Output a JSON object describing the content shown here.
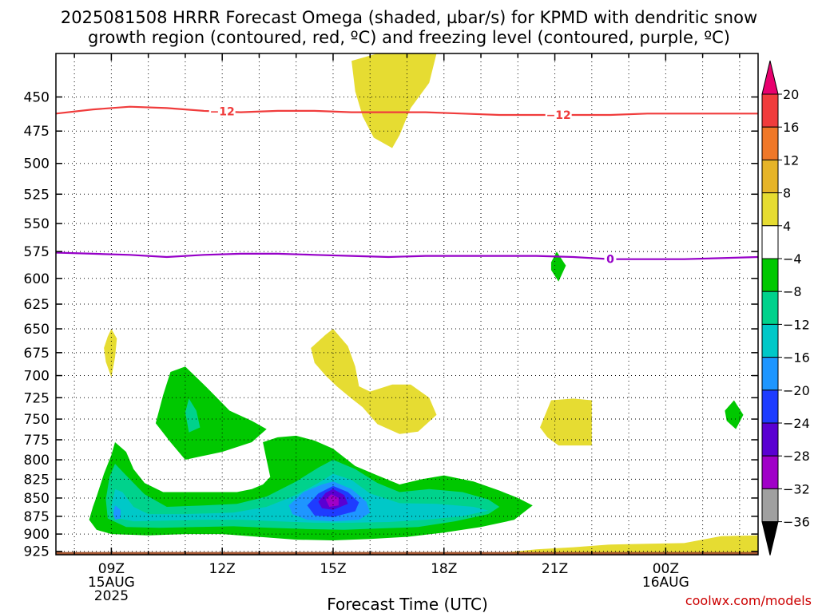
{
  "title_line1": "2025081508 HRRR Forecast Omega (shaded, µbar/s) for KPMD with dendritic snow",
  "title_line2": "growth region (contoured, red, ºC) and freezing level (contoured, purple, ºC)",
  "credit": "coolwx.com/models",
  "chart_data": {
    "type": "heatmap",
    "xlabel": "Forecast Time (UTC)",
    "ylabel": "",
    "x_range_hours": [
      7.5,
      26.5
    ],
    "y_range_hpa": [
      930,
      420
    ],
    "y_ticks": [
      450,
      475,
      500,
      525,
      550,
      575,
      600,
      625,
      650,
      675,
      700,
      725,
      750,
      775,
      800,
      825,
      850,
      875,
      900,
      925
    ],
    "x_ticks": [
      {
        "hour": 9,
        "lines": [
          "09Z",
          "15AUG",
          "2025"
        ]
      },
      {
        "hour": 12,
        "lines": [
          "12Z"
        ]
      },
      {
        "hour": 15,
        "lines": [
          "15Z"
        ]
      },
      {
        "hour": 18,
        "lines": [
          "18Z"
        ]
      },
      {
        "hour": 21,
        "lines": [
          "21Z"
        ]
      },
      {
        "hour": 24,
        "lines": [
          "00Z",
          "16AUG"
        ]
      }
    ],
    "grid": true,
    "colorbar": {
      "labels": [
        "20",
        "16",
        "12",
        "8",
        "4",
        "−4",
        "−8",
        "−12",
        "−16",
        "−20",
        "−24",
        "−28",
        "−32",
        "−36"
      ],
      "colors": [
        "#e8006e",
        "#f03c3c",
        "#f07828",
        "#e6b428",
        "#e6dc32",
        "#ffffff",
        "#00c800",
        "#00d28c",
        "#00c8c8",
        "#1e96ff",
        "#1e3cff",
        "#5a00d2",
        "#a000c8",
        "#a0a0a0",
        "#000000"
      ]
    },
    "contours": [
      {
        "label": "−12",
        "color": "#f03c3c",
        "points": [
          [
            7.5,
            462
          ],
          [
            8.5,
            459
          ],
          [
            9.5,
            457
          ],
          [
            10.5,
            458
          ],
          [
            11.5,
            460
          ],
          [
            12.5,
            461
          ],
          [
            13.5,
            460
          ],
          [
            14.5,
            460
          ],
          [
            15.5,
            461
          ],
          [
            16.5,
            461
          ],
          [
            17.5,
            461
          ],
          [
            18.5,
            462
          ],
          [
            19.5,
            463
          ],
          [
            20.5,
            463
          ],
          [
            21.5,
            463
          ],
          [
            22.5,
            463
          ],
          [
            23.5,
            462
          ],
          [
            24.5,
            462
          ],
          [
            25.5,
            462
          ],
          [
            26.5,
            462
          ]
        ],
        "label_hours": [
          12.0,
          21.1
        ]
      },
      {
        "label": "0",
        "color": "#9600c8",
        "points": [
          [
            7.5,
            576
          ],
          [
            8.5,
            577
          ],
          [
            9.5,
            578
          ],
          [
            10.5,
            580
          ],
          [
            11.5,
            578
          ],
          [
            12.5,
            577
          ],
          [
            13.5,
            577
          ],
          [
            14.5,
            578
          ],
          [
            15.5,
            579
          ],
          [
            16.5,
            580
          ],
          [
            17.5,
            579
          ],
          [
            18.5,
            579
          ],
          [
            19.5,
            579
          ],
          [
            20.5,
            579
          ],
          [
            21.5,
            580
          ],
          [
            22.5,
            582
          ],
          [
            23.5,
            582
          ],
          [
            24.5,
            582
          ],
          [
            25.5,
            581
          ],
          [
            26.5,
            580
          ]
        ],
        "label_hours": [
          22.5
        ]
      }
    ],
    "shaded_regions": [
      {
        "value": 4,
        "color": "#e6dc32",
        "points": [
          [
            16.2,
            420
          ],
          [
            17.8,
            420
          ],
          [
            17.6,
            440
          ],
          [
            17.1,
            458
          ],
          [
            16.8,
            478
          ],
          [
            16.6,
            488
          ],
          [
            16.1,
            480
          ],
          [
            15.8,
            464
          ],
          [
            15.6,
            446
          ],
          [
            15.5,
            425
          ]
        ]
      },
      {
        "value": 4,
        "color": "#e6dc32",
        "points": [
          [
            9.0,
            650
          ],
          [
            9.15,
            660
          ],
          [
            9.1,
            680
          ],
          [
            9.0,
            702
          ],
          [
            8.85,
            685
          ],
          [
            8.8,
            670
          ],
          [
            8.9,
            658
          ]
        ]
      },
      {
        "value": 4,
        "color": "#e6dc32",
        "points": [
          [
            14.4,
            670
          ],
          [
            14.8,
            656
          ],
          [
            15.0,
            650
          ],
          [
            15.4,
            668
          ],
          [
            15.6,
            690
          ],
          [
            15.7,
            712
          ],
          [
            16.0,
            718
          ],
          [
            16.6,
            710
          ],
          [
            17.1,
            710
          ],
          [
            17.6,
            725
          ],
          [
            17.8,
            745
          ],
          [
            17.3,
            765
          ],
          [
            16.8,
            768
          ],
          [
            16.2,
            756
          ],
          [
            15.8,
            736
          ],
          [
            15.5,
            726
          ],
          [
            15.1,
            712
          ],
          [
            14.8,
            700
          ],
          [
            14.5,
            686
          ]
        ]
      },
      {
        "value": 4,
        "color": "#e6dc32",
        "points": [
          [
            20.6,
            760
          ],
          [
            20.9,
            728
          ],
          [
            21.5,
            726
          ],
          [
            22.0,
            728
          ],
          [
            22.0,
            782
          ],
          [
            21.1,
            782
          ],
          [
            20.8,
            772
          ]
        ]
      },
      {
        "value": 4,
        "color": "#e6dc32",
        "points": [
          [
            19.6,
            927
          ],
          [
            20.5,
            922
          ],
          [
            21.5,
            919
          ],
          [
            22.5,
            915
          ],
          [
            23.5,
            914
          ],
          [
            24.5,
            913
          ],
          [
            25.5,
            903
          ],
          [
            26.5,
            902
          ],
          [
            26.5,
            930
          ],
          [
            19.6,
            930
          ]
        ]
      },
      {
        "value": -4,
        "color": "#00c800",
        "points": [
          [
            20.9,
            585
          ],
          [
            21.05,
            575
          ],
          [
            21.3,
            588
          ],
          [
            21.1,
            603
          ],
          [
            20.9,
            592
          ]
        ]
      },
      {
        "value": -4,
        "color": "#00c800",
        "points": [
          [
            25.6,
            740
          ],
          [
            25.85,
            728
          ],
          [
            26.1,
            745
          ],
          [
            25.9,
            762
          ],
          [
            25.65,
            752
          ]
        ]
      },
      {
        "value": -4,
        "color": "#00c800",
        "points": [
          [
            8.6,
            848
          ],
          [
            8.8,
            818
          ],
          [
            9.0,
            794
          ],
          [
            9.1,
            778
          ],
          [
            9.4,
            790
          ],
          [
            9.6,
            812
          ],
          [
            9.9,
            830
          ],
          [
            10.4,
            842
          ],
          [
            11.0,
            842
          ],
          [
            11.8,
            842
          ],
          [
            12.4,
            842
          ],
          [
            12.8,
            838
          ],
          [
            13.1,
            832
          ],
          [
            13.3,
            822
          ],
          [
            13.2,
            800
          ],
          [
            13.1,
            778
          ],
          [
            13.5,
            772
          ],
          [
            14.0,
            770
          ],
          [
            14.5,
            776
          ],
          [
            15.0,
            786
          ],
          [
            15.6,
            808
          ],
          [
            16.2,
            820
          ],
          [
            16.8,
            832
          ],
          [
            17.4,
            825
          ],
          [
            18.0,
            820
          ],
          [
            18.8,
            828
          ],
          [
            19.5,
            840
          ],
          [
            20.0,
            850
          ],
          [
            20.4,
            860
          ],
          [
            19.9,
            880
          ],
          [
            19.0,
            890
          ],
          [
            18.0,
            898
          ],
          [
            17.0,
            904
          ],
          [
            16.0,
            907
          ],
          [
            15.0,
            909
          ],
          [
            14.0,
            908
          ],
          [
            13.0,
            904
          ],
          [
            12.0,
            900
          ],
          [
            11.0,
            900
          ],
          [
            10.0,
            902
          ],
          [
            9.0,
            900
          ],
          [
            8.6,
            894
          ],
          [
            8.4,
            880
          ],
          [
            8.5,
            862
          ]
        ]
      },
      {
        "value": -4,
        "color": "#00c800",
        "points": [
          [
            10.2,
            755
          ],
          [
            10.4,
            722
          ],
          [
            10.6,
            696
          ],
          [
            11.0,
            690
          ],
          [
            11.6,
            714
          ],
          [
            12.2,
            740
          ],
          [
            12.8,
            752
          ],
          [
            13.2,
            762
          ],
          [
            12.8,
            778
          ],
          [
            12.0,
            790
          ],
          [
            11.0,
            800
          ],
          [
            10.6,
            778
          ]
        ]
      },
      {
        "value": -8,
        "color": "#00d28c",
        "points": [
          [
            8.85,
            852
          ],
          [
            8.95,
            822
          ],
          [
            9.1,
            805
          ],
          [
            9.4,
            820
          ],
          [
            9.9,
            845
          ],
          [
            10.5,
            862
          ],
          [
            11.5,
            860
          ],
          [
            12.4,
            858
          ],
          [
            13.2,
            848
          ],
          [
            14.0,
            828
          ],
          [
            14.6,
            810
          ],
          [
            15.0,
            800
          ],
          [
            15.6,
            812
          ],
          [
            16.2,
            830
          ],
          [
            16.8,
            842
          ],
          [
            17.6,
            838
          ],
          [
            18.5,
            842
          ],
          [
            19.2,
            852
          ],
          [
            19.5,
            862
          ],
          [
            19.2,
            872
          ],
          [
            18.3,
            882
          ],
          [
            17.3,
            890
          ],
          [
            16.3,
            892
          ],
          [
            15.3,
            894
          ],
          [
            14.3,
            893
          ],
          [
            13.3,
            891
          ],
          [
            12.3,
            889
          ],
          [
            11.3,
            890
          ],
          [
            10.3,
            891
          ],
          [
            9.4,
            890
          ],
          [
            8.9,
            878
          ]
        ]
      },
      {
        "value": -8,
        "color": "#00d28c",
        "points": [
          [
            11.0,
            742
          ],
          [
            11.1,
            726
          ],
          [
            11.3,
            740
          ],
          [
            11.4,
            760
          ],
          [
            11.1,
            766
          ]
        ]
      },
      {
        "value": -12,
        "color": "#00c8c8",
        "points": [
          [
            9.0,
            862
          ],
          [
            9.1,
            838
          ],
          [
            9.3,
            842
          ],
          [
            9.6,
            862
          ],
          [
            10.0,
            872
          ],
          [
            11.0,
            872
          ],
          [
            12.3,
            870
          ],
          [
            13.2,
            862
          ],
          [
            14.0,
            846
          ],
          [
            14.6,
            830
          ],
          [
            15.0,
            818
          ],
          [
            15.5,
            826
          ],
          [
            16.0,
            844
          ],
          [
            16.8,
            857
          ],
          [
            17.8,
            858
          ],
          [
            18.8,
            862
          ],
          [
            19.2,
            867
          ],
          [
            18.5,
            875
          ],
          [
            17.5,
            880
          ],
          [
            16.5,
            883
          ],
          [
            15.5,
            884
          ],
          [
            14.5,
            884
          ],
          [
            13.5,
            882
          ],
          [
            12.5,
            880
          ],
          [
            11.5,
            880
          ],
          [
            10.5,
            881
          ],
          [
            9.6,
            882
          ],
          [
            9.1,
            877
          ]
        ]
      },
      {
        "value": -16,
        "color": "#1e96ff",
        "points": [
          [
            13.8,
            860
          ],
          [
            14.2,
            842
          ],
          [
            14.7,
            832
          ],
          [
            15.0,
            828
          ],
          [
            15.5,
            838
          ],
          [
            15.9,
            855
          ],
          [
            16.0,
            870
          ],
          [
            15.7,
            880
          ],
          [
            15.0,
            882
          ],
          [
            14.3,
            880
          ],
          [
            13.9,
            872
          ]
        ]
      },
      {
        "value": -16,
        "color": "#1e96ff",
        "points": [
          [
            9.05,
            872
          ],
          [
            9.1,
            860
          ],
          [
            9.25,
            866
          ],
          [
            9.25,
            878
          ],
          [
            9.1,
            880
          ]
        ]
      },
      {
        "value": -20,
        "color": "#1e3cff",
        "points": [
          [
            14.3,
            860
          ],
          [
            14.6,
            844
          ],
          [
            15.0,
            834
          ],
          [
            15.4,
            842
          ],
          [
            15.7,
            856
          ],
          [
            15.6,
            868
          ],
          [
            15.0,
            876
          ],
          [
            14.5,
            874
          ]
        ]
      },
      {
        "value": -24,
        "color": "#5a00d2",
        "points": [
          [
            14.6,
            855
          ],
          [
            14.8,
            843
          ],
          [
            15.0,
            838
          ],
          [
            15.3,
            846
          ],
          [
            15.4,
            858
          ],
          [
            15.0,
            866
          ],
          [
            14.7,
            864
          ]
        ]
      },
      {
        "value": -28,
        "color": "#a000c8",
        "points": [
          [
            14.8,
            852
          ],
          [
            14.95,
            845
          ],
          [
            15.15,
            850
          ],
          [
            15.15,
            860
          ],
          [
            14.9,
            862
          ]
        ]
      },
      {
        "value": "ground",
        "color": "#a0522d",
        "points": [
          [
            7.5,
            926
          ],
          [
            26.5,
            926
          ],
          [
            26.5,
            930
          ],
          [
            7.5,
            930
          ]
        ]
      }
    ]
  }
}
